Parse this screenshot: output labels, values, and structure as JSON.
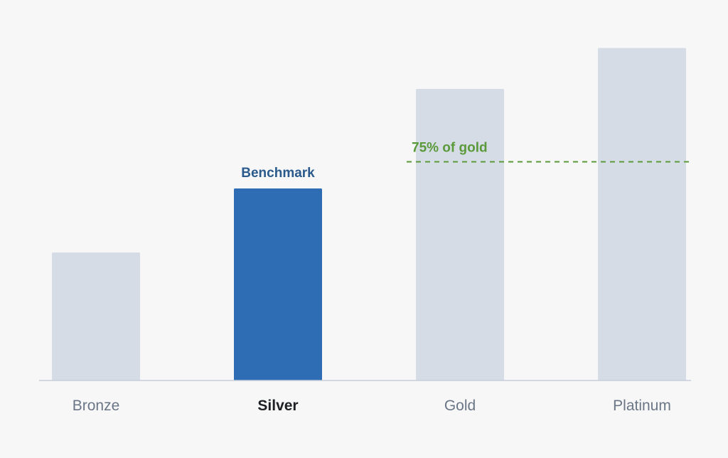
{
  "chart_data": {
    "type": "bar",
    "categories": [
      "Bronze",
      "Silver",
      "Gold",
      "Platinum"
    ],
    "values": [
      36,
      54,
      82,
      93.5
    ],
    "highlight_index": 1,
    "highlight_label": "Benchmark",
    "reference_line": {
      "value": 61.5,
      "label": "75% of gold",
      "start_category": 2
    },
    "ylim": [
      0,
      100
    ],
    "colors": {
      "bar": "#d6dce6",
      "highlight": "#2e6db4",
      "highlight_label": "#2a5a8c",
      "reference": "#5a9a3a",
      "axis": "#c7ced8",
      "tick": "#6a7686",
      "tick_highlight": "#1c1f24"
    }
  }
}
